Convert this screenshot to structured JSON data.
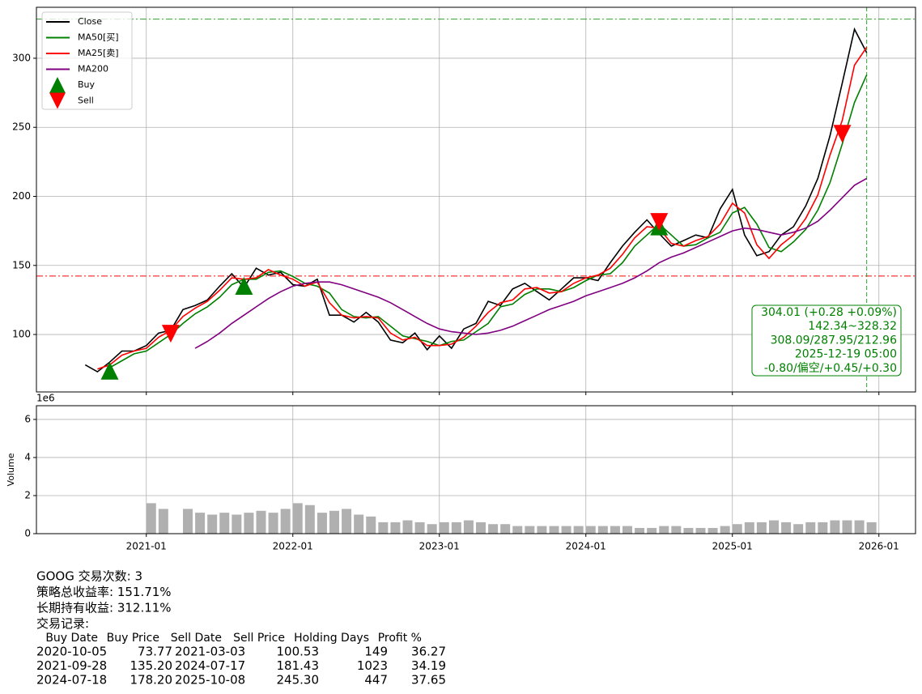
{
  "chart_data": [
    {
      "type": "line",
      "x": [
        "2020-08",
        "2020-09",
        "2020-10",
        "2020-11",
        "2020-12",
        "2021-01",
        "2021-02",
        "2021-03",
        "2021-04",
        "2021-05",
        "2021-06",
        "2021-07",
        "2021-08",
        "2021-09",
        "2021-10",
        "2021-11",
        "2021-12",
        "2022-01",
        "2022-02",
        "2022-03",
        "2022-04",
        "2022-05",
        "2022-06",
        "2022-07",
        "2022-08",
        "2022-09",
        "2022-10",
        "2022-11",
        "2022-12",
        "2023-01",
        "2023-02",
        "2023-03",
        "2023-04",
        "2023-05",
        "2023-06",
        "2023-07",
        "2023-08",
        "2023-09",
        "2023-10",
        "2023-11",
        "2023-12",
        "2024-01",
        "2024-02",
        "2024-03",
        "2024-04",
        "2024-05",
        "2024-06",
        "2024-07",
        "2024-08",
        "2024-09",
        "2024-10",
        "2024-11",
        "2024-12",
        "2025-01",
        "2025-02",
        "2025-03",
        "2025-04",
        "2025-05",
        "2025-06",
        "2025-07",
        "2025-08",
        "2025-09",
        "2025-10",
        "2025-11",
        "2025-12"
      ],
      "series": [
        {
          "name": "Close",
          "color": "#000000",
          "values": [
            78,
            73,
            80,
            88,
            88,
            92,
            101,
            103,
            118,
            121,
            125,
            135,
            144,
            134,
            148,
            143,
            145,
            136,
            135,
            140,
            114,
            114,
            109,
            116,
            109,
            96,
            94,
            101,
            89,
            99,
            90,
            104,
            108,
            124,
            121,
            133,
            137,
            131,
            125,
            133,
            141,
            141,
            139,
            152,
            164,
            174,
            183,
            173,
            164,
            168,
            172,
            170,
            191,
            205,
            172,
            157,
            160,
            172,
            178,
            193,
            213,
            244,
            282,
            321,
            304
          ]
        },
        {
          "name": "MA50[买]",
          "color": "#008000",
          "values": [
            null,
            null,
            76,
            81,
            86,
            88,
            94,
            100,
            108,
            115,
            120,
            127,
            136,
            140,
            140,
            145,
            146,
            142,
            137,
            135,
            130,
            118,
            113,
            112,
            113,
            106,
            99,
            97,
            95,
            92,
            95,
            96,
            102,
            108,
            120,
            122,
            129,
            133,
            133,
            131,
            134,
            139,
            143,
            144,
            152,
            164,
            172,
            180,
            172,
            164,
            165,
            170,
            174,
            188,
            192,
            180,
            163,
            160,
            167,
            176,
            190,
            210,
            238,
            268,
            288
          ]
        },
        {
          "name": "MA25[卖]",
          "color": "#ff0000",
          "values": [
            null,
            75,
            78,
            85,
            88,
            90,
            98,
            103,
            113,
            119,
            124,
            132,
            141,
            140,
            141,
            147,
            143,
            140,
            135,
            138,
            123,
            114,
            112,
            113,
            112,
            101,
            96,
            98,
            92,
            92,
            93,
            98,
            106,
            116,
            123,
            125,
            133,
            134,
            130,
            131,
            137,
            141,
            143,
            148,
            158,
            170,
            178,
            177,
            166,
            164,
            168,
            171,
            180,
            195,
            188,
            165,
            155,
            165,
            172,
            184,
            201,
            230,
            255,
            295,
            308
          ]
        },
        {
          "name": "MA200",
          "color": "#800080",
          "values": [
            null,
            null,
            null,
            null,
            null,
            null,
            null,
            null,
            null,
            90,
            95,
            101,
            108,
            114,
            120,
            126,
            131,
            135,
            137,
            138,
            138,
            136,
            133,
            130,
            127,
            123,
            118,
            113,
            108,
            104,
            102,
            101,
            100,
            101,
            103,
            106,
            110,
            114,
            118,
            121,
            124,
            128,
            131,
            134,
            137,
            141,
            146,
            152,
            156,
            159,
            163,
            167,
            171,
            175,
            177,
            176,
            174,
            172,
            174,
            177,
            182,
            190,
            199,
            208,
            213
          ]
        },
        {
          "name": "Buy",
          "color": "#008000",
          "marker": "triangle-up",
          "x": [
            "2020-10",
            "2021-09",
            "2024-07"
          ],
          "values": [
            73.77,
            135.2,
            178.2
          ]
        },
        {
          "name": "Sell",
          "color": "#ff0000",
          "marker": "triangle-down",
          "x": [
            "2021-03",
            "2024-07",
            "2025-10"
          ],
          "values": [
            100.53,
            181.43,
            245.3
          ]
        }
      ],
      "hlines": [
        {
          "value": 328.32,
          "color": "#2ca02c"
        },
        {
          "value": 142.34,
          "color": "#ff0000"
        }
      ],
      "vline": {
        "x": "2025-12",
        "color": "#2ca02c"
      },
      "annotation": {
        "color": "#008000",
        "lines": [
          "304.01 (+0.28 +0.09%)",
          "142.34~328.32",
          "308.09/287.95/212.96",
          "2025-12-19 05:00",
          "-0.80/偏空/+0.45/+0.30"
        ]
      },
      "xlim": [
        "2020-04",
        "2026-04"
      ],
      "xticks": [
        "2021-01",
        "2022-01",
        "2023-01",
        "2024-01",
        "2025-01",
        "2026-01"
      ],
      "ylim": [
        58.4,
        336.9
      ],
      "yticks": [
        100,
        150,
        200,
        250,
        300
      ],
      "grid": true,
      "legend": "upper left"
    },
    {
      "type": "bar",
      "x": [
        "2020-08",
        "2020-09",
        "2020-10",
        "2020-11",
        "2020-12",
        "2021-01",
        "2021-02",
        "2021-03",
        "2021-04",
        "2021-05",
        "2021-06",
        "2021-07",
        "2021-08",
        "2021-09",
        "2021-10",
        "2021-11",
        "2021-12",
        "2022-01",
        "2022-02",
        "2022-03",
        "2022-04",
        "2022-05",
        "2022-06",
        "2022-07",
        "2022-08",
        "2022-09",
        "2022-10",
        "2022-11",
        "2022-12",
        "2023-01",
        "2023-02",
        "2023-03",
        "2023-04",
        "2023-05",
        "2023-06",
        "2023-07",
        "2023-08",
        "2023-09",
        "2023-10",
        "2023-11",
        "2023-12",
        "2024-01",
        "2024-02",
        "2024-03",
        "2024-04",
        "2024-05",
        "2024-06",
        "2024-07",
        "2024-08",
        "2024-09",
        "2024-10",
        "2024-11",
        "2024-12",
        "2025-01",
        "2025-02",
        "2025-03",
        "2025-04",
        "2025-05",
        "2025-06",
        "2025-07",
        "2025-08",
        "2025-09",
        "2025-10",
        "2025-11",
        "2025-12"
      ],
      "values": [
        null,
        null,
        null,
        null,
        null,
        1.6,
        1.3,
        null,
        1.3,
        1.1,
        1.0,
        1.1,
        1.0,
        1.1,
        1.2,
        1.1,
        1.3,
        1.6,
        1.5,
        1.1,
        1.2,
        1.3,
        1.0,
        0.9,
        0.6,
        0.6,
        0.7,
        0.6,
        0.5,
        0.6,
        0.6,
        0.7,
        0.6,
        0.5,
        0.5,
        0.4,
        0.4,
        0.4,
        0.4,
        0.4,
        0.4,
        0.4,
        0.4,
        0.4,
        0.4,
        0.3,
        0.3,
        0.4,
        0.4,
        0.3,
        0.3,
        0.3,
        0.4,
        0.5,
        0.6,
        0.6,
        0.7,
        0.6,
        0.5,
        0.6,
        0.6,
        0.7,
        0.7,
        0.7,
        0.6
      ],
      "color": "#b0b0b0",
      "ylabel": "Volume",
      "scale_label": "1e6",
      "xlim": [
        "2020-04",
        "2026-04"
      ],
      "xticks": [
        "2021-01",
        "2022-01",
        "2023-01",
        "2024-01",
        "2025-01",
        "2026-01"
      ],
      "ylim": [
        0,
        6.72
      ],
      "yticks": [
        0,
        2,
        4,
        6
      ],
      "grid": true
    }
  ],
  "report": {
    "lines": [
      "GOOG 交易次数: 3",
      "策略总收益率: 151.71%",
      "长期持有收益: 312.11%",
      "交易记录:"
    ],
    "table": {
      "header": [
        "Buy Date",
        "Buy Price",
        "Sell Date",
        "Sell Price",
        "Holding Days",
        "Profit %"
      ],
      "rows": [
        [
          "2020-10-05",
          "73.77",
          "2021-03-03",
          "100.53",
          "149",
          "36.27"
        ],
        [
          "2021-09-28",
          "135.20",
          "2024-07-17",
          "181.43",
          "1023",
          "34.19"
        ],
        [
          "2024-07-18",
          "178.20",
          "2025-10-08",
          "245.30",
          "447",
          "37.65"
        ]
      ]
    }
  }
}
